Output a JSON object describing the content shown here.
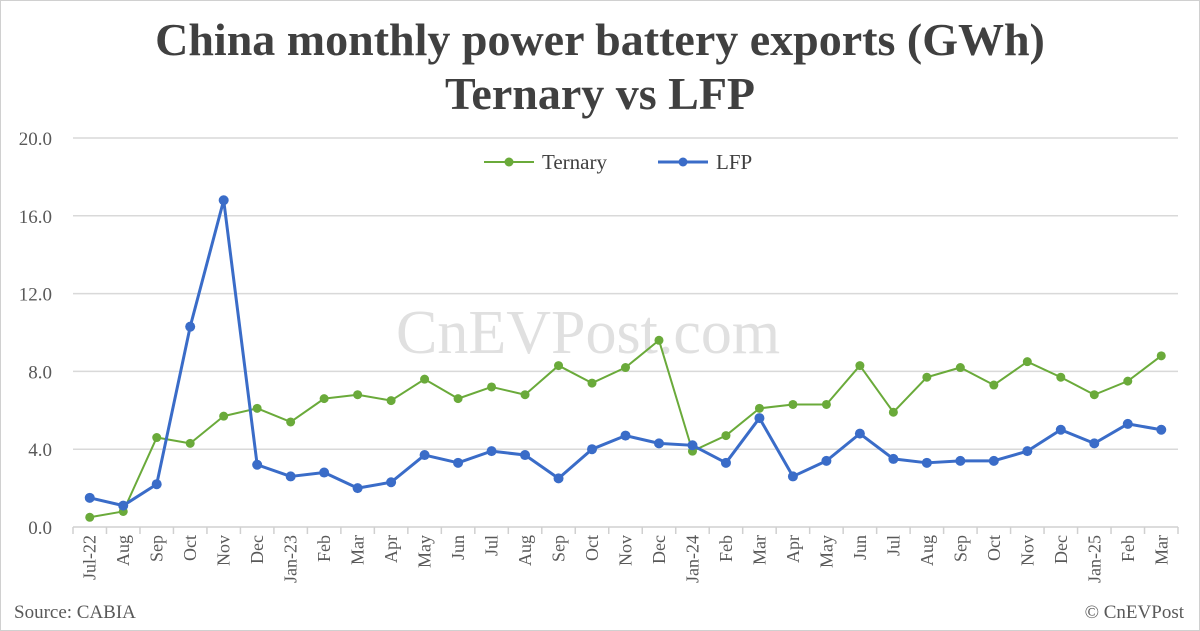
{
  "chart_data": {
    "type": "line",
    "title": "China monthly power battery exports (GWh)",
    "subtitle": "Ternary vs LFP",
    "xlabel": "",
    "ylabel": "",
    "ylim": [
      0,
      20
    ],
    "yticks": [
      "0.0",
      "4.0",
      "8.0",
      "12.0",
      "16.0",
      "20.0"
    ],
    "grid": true,
    "legend_position": "top-center",
    "categories": [
      "Jul-22",
      "Aug",
      "Sep",
      "Oct",
      "Nov",
      "Dec",
      "Jan-23",
      "Feb",
      "Mar",
      "Apr",
      "May",
      "Jun",
      "Jul",
      "Aug",
      "Sep",
      "Oct",
      "Nov",
      "Dec",
      "Jan-24",
      "Feb",
      "Mar",
      "Apr",
      "May",
      "Jun",
      "Jul",
      "Aug",
      "Sep",
      "Oct",
      "Nov",
      "Dec",
      "Jan-25",
      "Feb",
      "Mar"
    ],
    "series": [
      {
        "name": "Ternary",
        "color": "#6aaa3a",
        "values": [
          0.5,
          0.8,
          4.6,
          4.3,
          5.7,
          6.1,
          5.4,
          6.6,
          6.8,
          6.5,
          7.6,
          6.6,
          7.2,
          6.8,
          8.3,
          7.4,
          8.2,
          9.6,
          3.9,
          4.7,
          6.1,
          6.3,
          6.3,
          8.3,
          5.9,
          7.7,
          8.2,
          7.3,
          8.5,
          7.7,
          6.8,
          7.5,
          8.8
        ]
      },
      {
        "name": "LFP",
        "color": "#3a6cc8",
        "values": [
          1.5,
          1.1,
          2.2,
          10.3,
          16.8,
          3.2,
          2.6,
          2.8,
          2.0,
          2.3,
          3.7,
          3.3,
          3.9,
          3.7,
          2.5,
          4.0,
          4.7,
          4.3,
          4.2,
          3.3,
          5.6,
          2.6,
          3.4,
          4.8,
          3.5,
          3.3,
          3.4,
          3.4,
          3.9,
          5.0,
          4.3,
          5.3,
          5.0
        ]
      }
    ]
  },
  "footer": {
    "source": "Source: CABIA",
    "copyright": "© CnEVPost"
  },
  "watermark": "CnEVPost.com"
}
